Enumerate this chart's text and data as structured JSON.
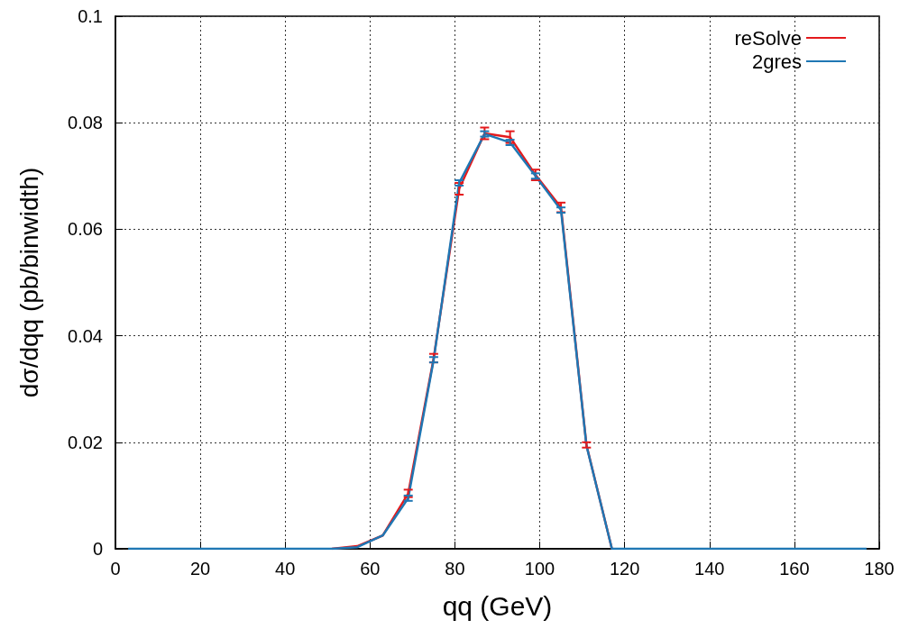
{
  "chart_data": {
    "type": "line",
    "xlabel": "qq (GeV)",
    "ylabel": "dσ/dqq (pb/binwidth)",
    "x": [
      3,
      9,
      15,
      21,
      27,
      33,
      39,
      45,
      51,
      57,
      63,
      69,
      75,
      81,
      87,
      93,
      99,
      105,
      111,
      117,
      123,
      129,
      135,
      141,
      147,
      153,
      159,
      165,
      171,
      177
    ],
    "series": [
      {
        "name": "reSolve",
        "color": "#e41a1c",
        "values": [
          null,
          null,
          null,
          null,
          null,
          null,
          null,
          null,
          0,
          0.0005,
          0.0025,
          0.0104,
          0.0358,
          0.0676,
          0.078,
          0.0773,
          0.0702,
          0.0641,
          0.0195,
          0,
          null,
          null,
          null,
          null,
          null,
          null,
          null,
          null,
          null,
          null
        ],
        "errors": [
          null,
          null,
          null,
          null,
          null,
          null,
          null,
          null,
          null,
          null,
          null,
          0.0007,
          0.0008,
          0.0011,
          0.0011,
          0.0011,
          0.001,
          0.0009,
          0.0005,
          null,
          null,
          null,
          null,
          null,
          null,
          null,
          null,
          null,
          null,
          null
        ]
      },
      {
        "name": "2gres",
        "color": "#1f77b4",
        "values": [
          0,
          0,
          0,
          0,
          0,
          0,
          0,
          0,
          0,
          0.0003,
          0.0025,
          0.0095,
          0.0355,
          0.0687,
          0.0779,
          0.0763,
          0.07,
          0.0636,
          0.0194,
          0,
          0,
          0,
          0,
          0,
          0,
          0,
          0,
          0,
          0,
          0
        ],
        "errors": [
          null,
          null,
          null,
          null,
          null,
          null,
          null,
          null,
          null,
          null,
          null,
          0.0005,
          0.0005,
          0.0005,
          0.0005,
          0.0005,
          0.0005,
          0.0005,
          null,
          null,
          null,
          null,
          null,
          null,
          null,
          null,
          null,
          null,
          null,
          null
        ]
      }
    ],
    "xlim": [
      0,
      180
    ],
    "xticks": [
      0,
      20,
      40,
      60,
      80,
      100,
      120,
      140,
      160,
      180
    ],
    "ylim": [
      0,
      0.1
    ],
    "yticks": [
      0,
      0.02,
      0.04,
      0.06,
      0.08,
      0.1
    ],
    "grid": true,
    "legend": "top right",
    "line_style": "solid"
  }
}
